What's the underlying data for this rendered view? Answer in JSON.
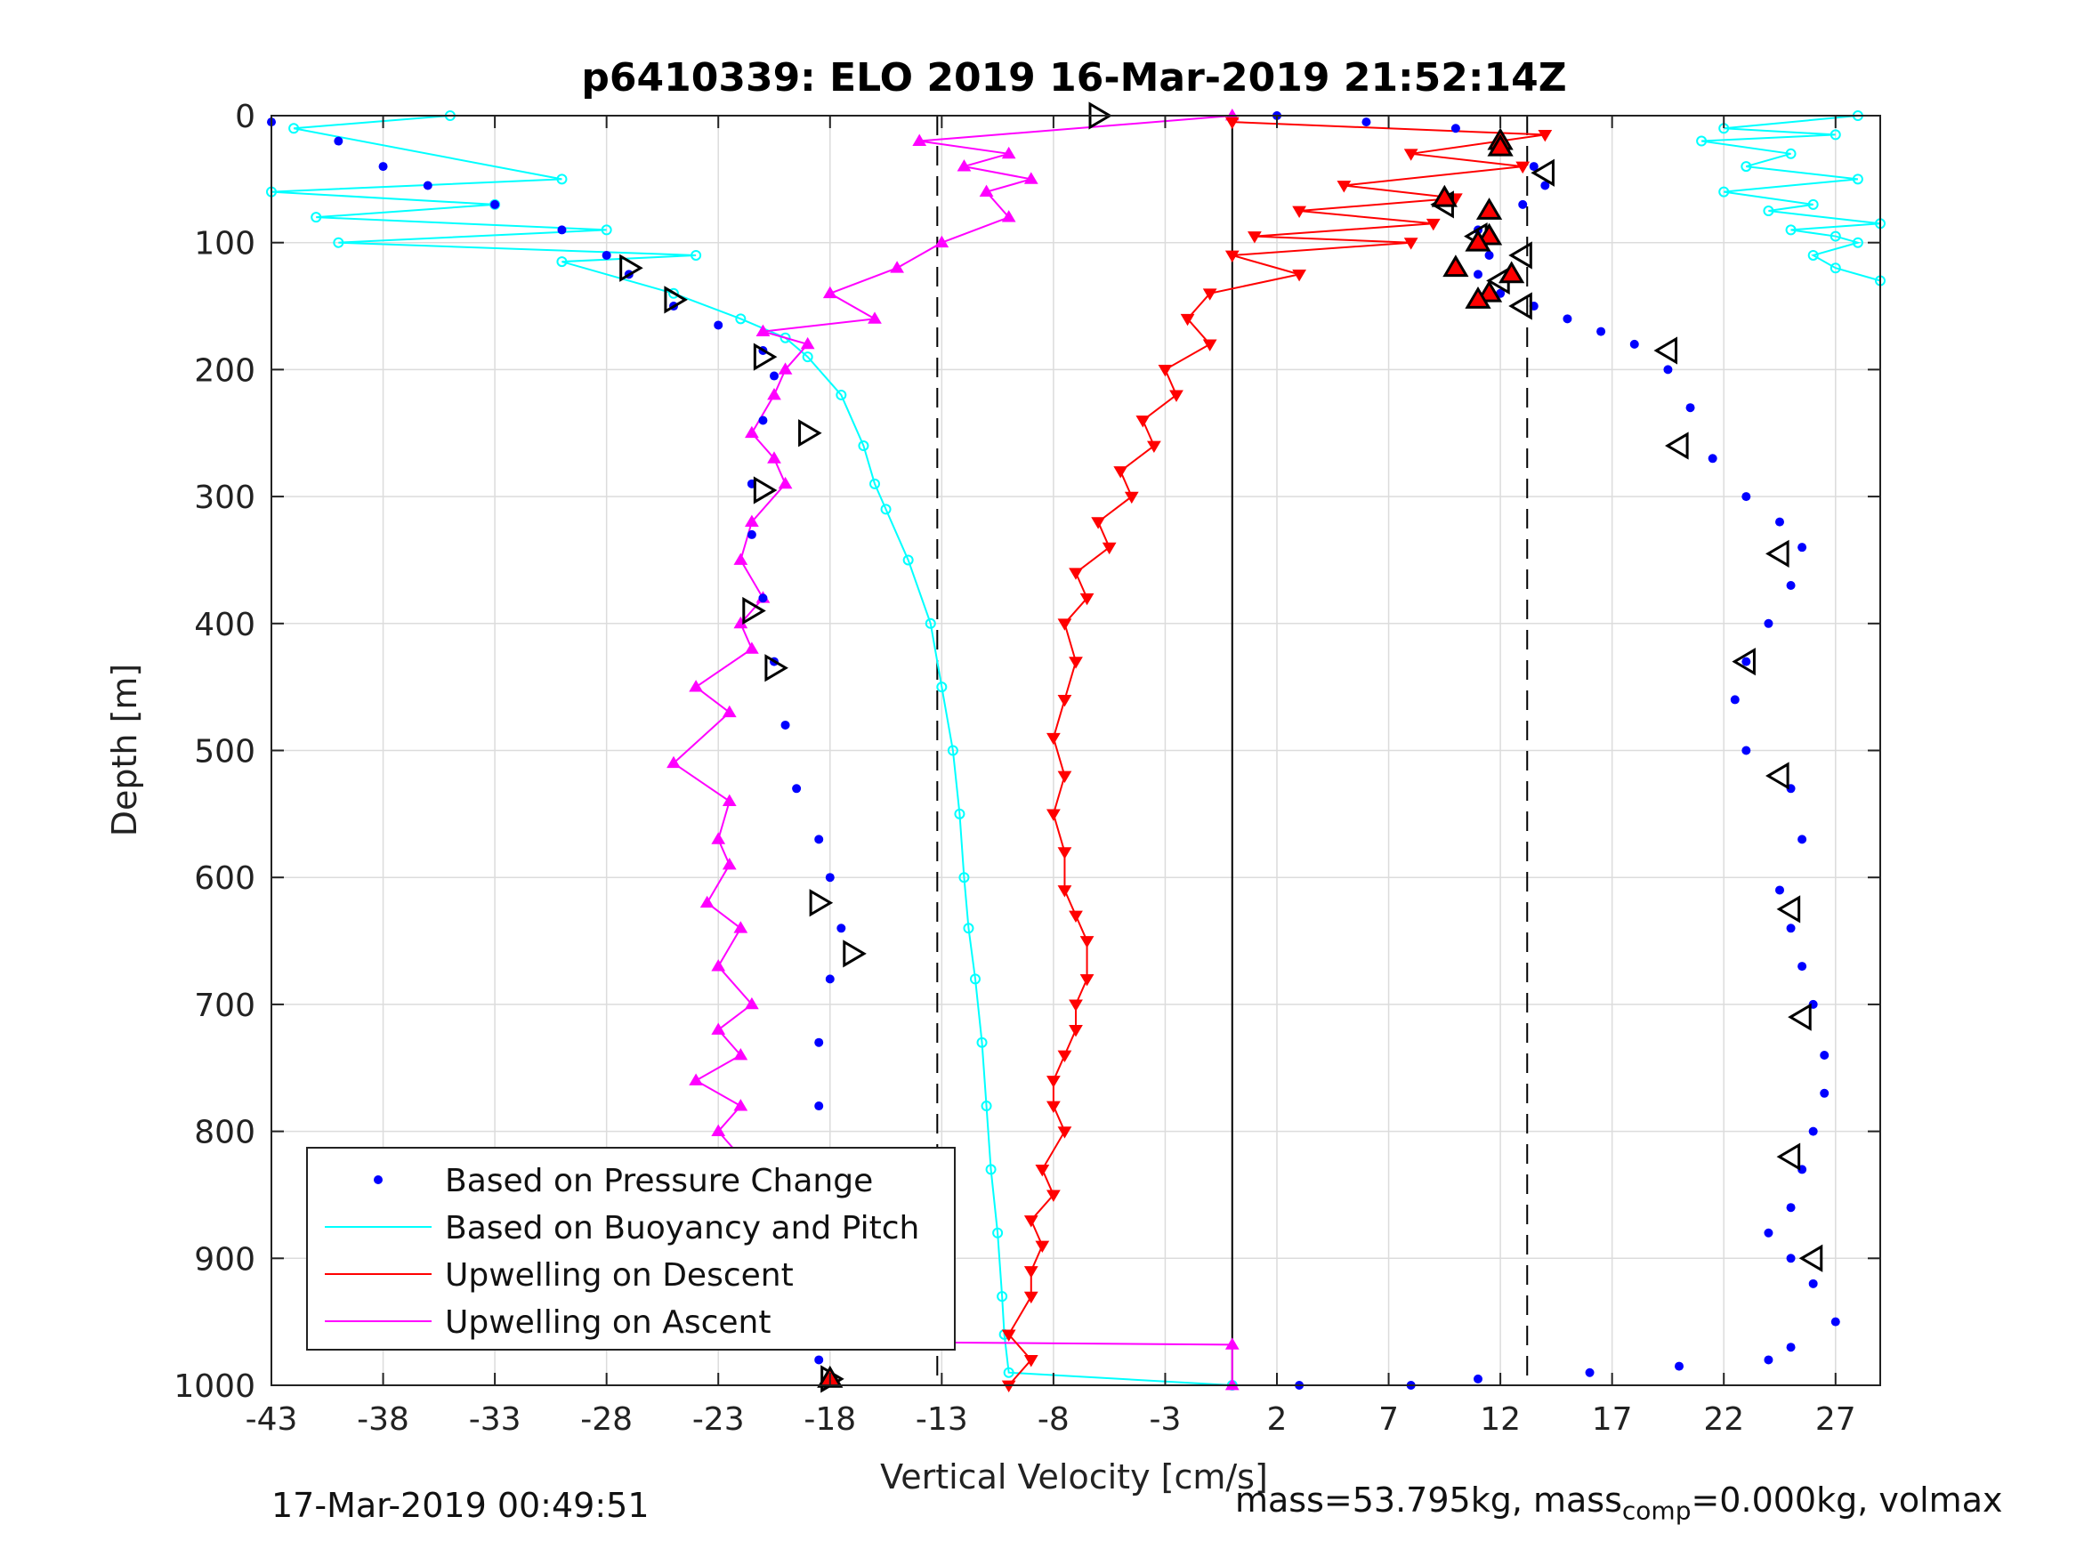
{
  "chart_data": {
    "type": "scatter",
    "title": "p6410339: ELO 2019 16-Mar-2019 21:52:14Z",
    "xlabel": "Vertical Velocity [cm/s]",
    "ylabel": "Depth [m]",
    "xlim": [
      -43,
      29
    ],
    "ylim": [
      1000,
      0
    ],
    "y_reversed": true,
    "grid": true,
    "legend_position": "bottom-left",
    "x_ticks": [
      -43,
      -38,
      -33,
      -28,
      -23,
      -18,
      -13,
      -8,
      -3,
      2,
      7,
      12,
      17,
      22,
      27
    ],
    "x_tick_labels": [
      "-43",
      "-38",
      "-33",
      "-28",
      "-23",
      "-18",
      "-13",
      "-8",
      "-3",
      "2",
      "7",
      "12",
      "17",
      "22",
      "27"
    ],
    "y_ticks": [
      0,
      100,
      200,
      300,
      400,
      500,
      600,
      700,
      800,
      900,
      1000
    ],
    "y_tick_labels": [
      "0",
      "100",
      "200",
      "300",
      "400",
      "500",
      "600",
      "700",
      "800",
      "900",
      "1000"
    ],
    "reference_lines": [
      {
        "x": -13.2,
        "style": "dashed"
      },
      {
        "x": 0,
        "style": "solid"
      },
      {
        "x": 13.2,
        "style": "dashed"
      }
    ],
    "series": [
      {
        "name": "Based on Pressure Change",
        "style": "dots",
        "color": "#0000ff",
        "dive": {
          "x": [
            -43,
            -40,
            -38,
            -36,
            -33,
            -30,
            -28,
            -27,
            -25,
            -23,
            -21,
            -20.5,
            -21,
            -21.5,
            -21.5,
            -21,
            -20.5,
            -20,
            -19.5,
            -18.5,
            -18,
            -17.5,
            -18,
            -18.5,
            -18.5,
            -18,
            -18,
            -18.5,
            -19,
            -18.5,
            -18
          ],
          "y": [
            5,
            20,
            40,
            55,
            70,
            90,
            110,
            125,
            150,
            165,
            185,
            205,
            240,
            290,
            330,
            380,
            430,
            480,
            530,
            570,
            600,
            640,
            680,
            730,
            780,
            830,
            870,
            910,
            950,
            980,
            995
          ]
        },
        "climb": {
          "x": [
            2,
            6,
            10,
            12,
            13.5,
            14,
            13,
            11,
            11.5,
            11,
            12,
            13.5,
            15,
            16.5,
            18,
            19.5,
            20.5,
            21.5,
            23,
            24.5,
            25.5,
            25,
            24,
            23,
            22.5,
            23,
            25,
            25.5,
            24.5,
            25,
            25.5,
            26,
            26.5,
            26.5,
            26,
            25.5,
            25,
            24,
            25,
            26,
            27,
            25,
            24,
            20,
            16,
            11,
            8,
            3
          ],
          "y": [
            0,
            5,
            10,
            20,
            40,
            55,
            70,
            90,
            110,
            125,
            140,
            150,
            160,
            170,
            180,
            200,
            230,
            270,
            300,
            320,
            340,
            370,
            400,
            430,
            460,
            500,
            530,
            570,
            610,
            640,
            670,
            700,
            740,
            770,
            800,
            830,
            860,
            880,
            900,
            920,
            950,
            970,
            980,
            985,
            990,
            995,
            1000,
            1000
          ]
        }
      },
      {
        "name": "Based on Buoyancy and Pitch",
        "style": "line-circles",
        "color": "#00ffff",
        "dive": {
          "x": [
            -35,
            -42,
            -30,
            -43,
            -33,
            -41,
            -28,
            -40,
            -24,
            -30,
            -25,
            -22,
            -20,
            -19,
            -17.5,
            -16.5,
            -16,
            -15.5,
            -14.5,
            -13.5,
            -13,
            -12.5,
            -12.2,
            -12.0,
            -11.8,
            -11.5,
            -11.2,
            -11.0,
            -10.8,
            -10.5,
            -10.3,
            -10.2,
            -10.0,
            0
          ],
          "y": [
            0,
            10,
            50,
            60,
            70,
            80,
            90,
            100,
            110,
            115,
            140,
            160,
            175,
            190,
            220,
            260,
            290,
            310,
            350,
            400,
            450,
            500,
            550,
            600,
            640,
            680,
            730,
            780,
            830,
            880,
            930,
            960,
            990,
            1000
          ]
        },
        "climb": {
          "x": [
            28,
            22,
            27,
            21,
            25,
            23,
            28,
            22,
            26,
            24,
            29,
            25,
            27,
            28,
            26,
            27,
            29
          ],
          "y": [
            0,
            10,
            15,
            20,
            30,
            40,
            50,
            60,
            70,
            75,
            85,
            90,
            95,
            100,
            110,
            120,
            130
          ]
        }
      },
      {
        "name": "Upwelling on Descent",
        "style": "line-down-triangles",
        "color": "#ff0000",
        "x": [
          0,
          14,
          8,
          13,
          5,
          10,
          3,
          9,
          1,
          8,
          0,
          3,
          -1,
          -2,
          -1,
          -3,
          -2.5,
          -4,
          -3.5,
          -5,
          -4.5,
          -6,
          -5.5,
          -7,
          -6.5,
          -7.5,
          -7,
          -7.5,
          -8,
          -7.5,
          -8,
          -7.5,
          -7.5,
          -7,
          -6.5,
          -6.5,
          -7,
          -7,
          -7.5,
          -8,
          -8,
          -7.5,
          -8.5,
          -8,
          -9,
          -8.5,
          -9,
          -9,
          -10,
          -9,
          -10
        ],
        "y": [
          5,
          15,
          30,
          40,
          55,
          65,
          75,
          85,
          95,
          100,
          110,
          125,
          140,
          160,
          180,
          200,
          220,
          240,
          260,
          280,
          300,
          320,
          340,
          360,
          380,
          400,
          430,
          460,
          490,
          520,
          550,
          580,
          610,
          630,
          650,
          680,
          700,
          720,
          740,
          760,
          780,
          800,
          830,
          850,
          870,
          890,
          910,
          930,
          960,
          980,
          1000
        ]
      },
      {
        "name": "Upwelling on Ascent",
        "style": "line-up-triangles",
        "color": "#ff00ff",
        "x": [
          0,
          -14,
          -10,
          -12,
          -9,
          -11,
          -10,
          -13,
          -15,
          -18,
          -16,
          -21,
          -19,
          -20,
          -20.5,
          -21.5,
          -20.5,
          -20,
          -21.5,
          -22,
          -21,
          -22,
          -21.5,
          -24,
          -22.5,
          -25,
          -22.5,
          -23,
          -22.5,
          -23.5,
          -22,
          -23,
          -21.5,
          -23,
          -22,
          -24,
          -22,
          -23,
          -22,
          -25,
          -22,
          -23,
          -21,
          -23.5,
          -22,
          -18,
          -23,
          0,
          0
        ],
        "y": [
          0,
          20,
          30,
          40,
          50,
          60,
          80,
          100,
          120,
          140,
          160,
          170,
          180,
          200,
          220,
          250,
          270,
          290,
          320,
          350,
          380,
          400,
          420,
          450,
          470,
          510,
          540,
          570,
          590,
          620,
          640,
          670,
          700,
          720,
          740,
          760,
          780,
          800,
          820,
          840,
          860,
          880,
          910,
          930,
          950,
          960,
          965,
          968,
          1000
        ]
      }
    ],
    "markers": {
      "descent_triangles": {
        "x": [
          -6,
          -27,
          -25,
          -21,
          -19,
          -21,
          -21.5,
          -20.5,
          -18.5,
          -17,
          -19,
          -18
        ],
        "y": [
          0,
          120,
          145,
          190,
          250,
          295,
          390,
          435,
          620,
          660,
          945,
          995
        ]
      },
      "climb_triangles": {
        "x": [
          14,
          9.5,
          11,
          13,
          12,
          13,
          19.5,
          20,
          24.5,
          23,
          24.5,
          25,
          25.5,
          25,
          26
        ],
        "y": [
          45,
          70,
          95,
          110,
          130,
          150,
          185,
          260,
          345,
          430,
          520,
          625,
          710,
          820,
          900
        ]
      },
      "red_up_triangles": {
        "x": [
          12,
          12,
          9.5,
          11.5,
          11.5,
          11,
          10,
          12.5,
          11.5,
          11,
          -18
        ],
        "y": [
          20,
          25,
          65,
          75,
          95,
          100,
          120,
          125,
          140,
          145,
          995
        ]
      }
    },
    "legend": [
      "Based on Pressure Change",
      "Based on Buoyancy and Pitch",
      "Upwelling on Descent",
      "Upwelling on Ascent"
    ]
  },
  "footer": {
    "timestamp": "17-Mar-2019 00:49:51",
    "mass_text": "mass=53.795kg, mass",
    "mass_sub": "comp",
    "mass_rest": "=0.000kg, volmax"
  }
}
